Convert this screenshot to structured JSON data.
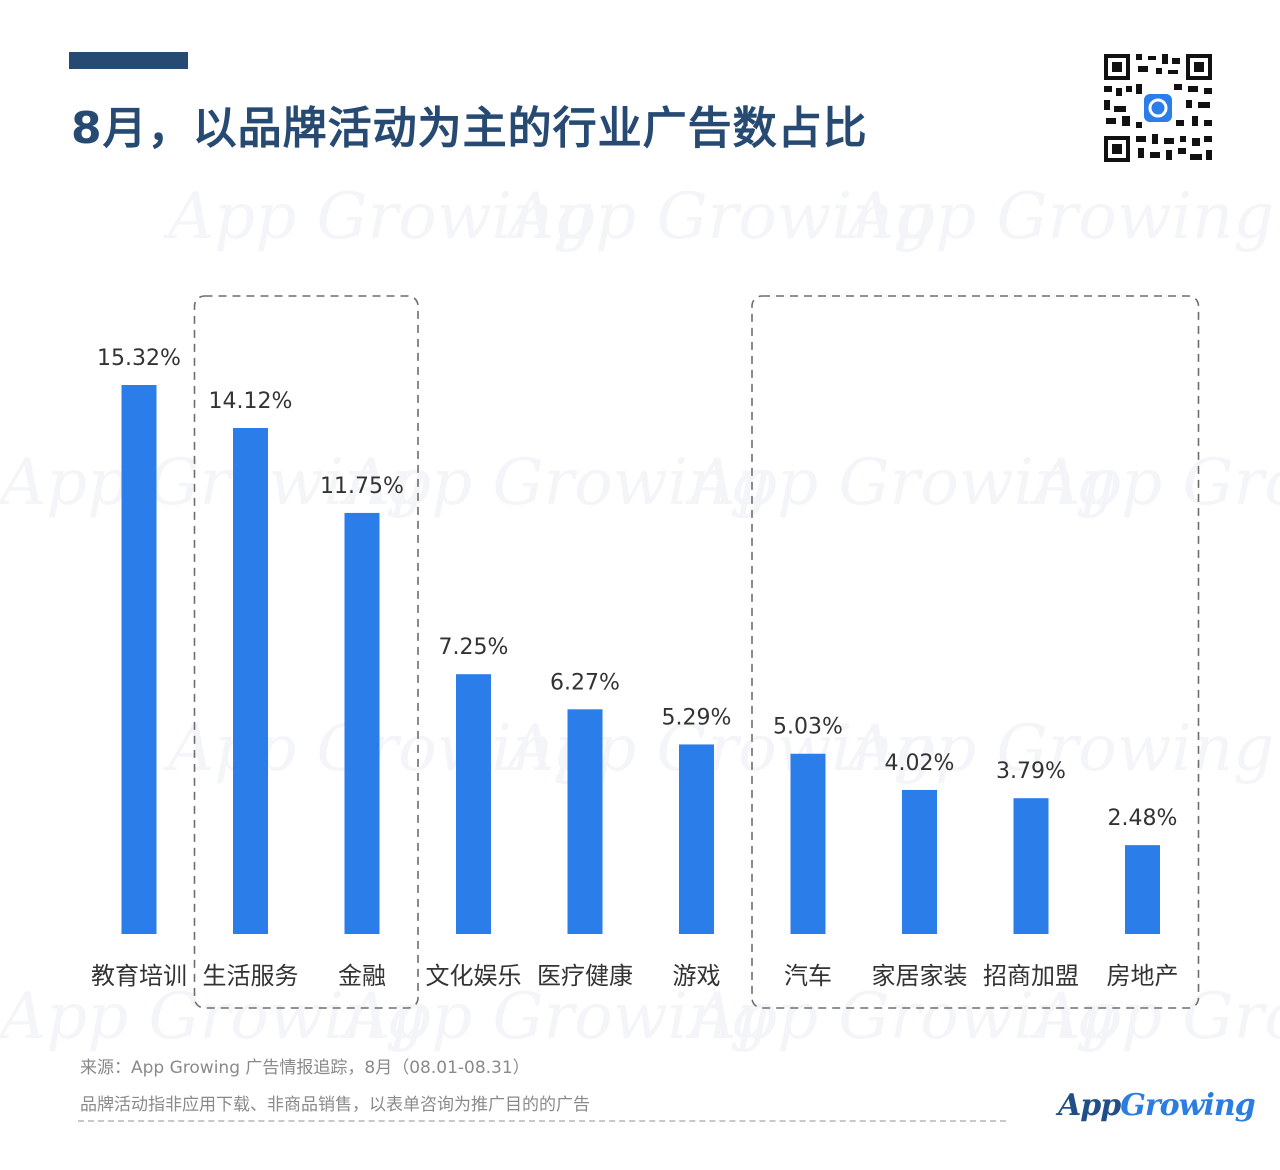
{
  "header": {
    "title": "8月，以品牌活动为主的行业广告数占比"
  },
  "watermark_text": "App Growing",
  "chart_data": {
    "type": "bar",
    "categories": [
      "教育培训",
      "生活服务",
      "金融",
      "文化娱乐",
      "医疗健康",
      "游戏",
      "汽车",
      "家居家装",
      "招商加盟",
      "房地产"
    ],
    "values": [
      15.32,
      14.12,
      11.75,
      7.25,
      6.27,
      5.29,
      5.03,
      4.02,
      3.79,
      2.48
    ],
    "value_labels": [
      "15.32%",
      "14.12%",
      "11.75%",
      "7.25%",
      "6.27%",
      "5.29%",
      "5.03%",
      "4.02%",
      "3.79%",
      "2.48%"
    ],
    "unit": "%",
    "title": "8月，以品牌活动为主的行业广告数占比",
    "xlabel": "",
    "ylabel": "",
    "ylim": [
      0,
      15.32
    ],
    "grid": false,
    "legend": "none",
    "bar_color": "#2b7de9",
    "highlight_groups": [
      {
        "categories": [
          "生活服务",
          "金融"
        ]
      },
      {
        "categories": [
          "汽车",
          "家居家装",
          "招商加盟",
          "房地产"
        ]
      }
    ]
  },
  "footer": {
    "source": "来源：App Growing 广告情报追踪，8月（08.01-08.31）",
    "note": "品牌活动指非应用下载、非商品销售，以表单咨询为推广目的的广告",
    "logo_part1": "App",
    "logo_part2": "Growing"
  },
  "colors": {
    "title": "#274a73",
    "bar": "#2b7de9",
    "label": "#333333",
    "footer_text": "#8a8a8a"
  }
}
